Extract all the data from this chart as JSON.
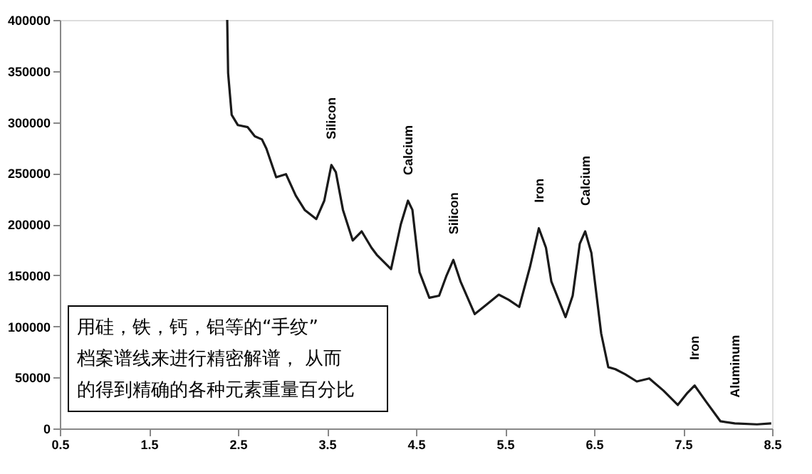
{
  "chart_data": {
    "type": "line",
    "x": [
      2.38,
      2.39,
      2.43,
      2.5,
      2.61,
      2.69,
      2.77,
      2.82,
      2.93,
      3.04,
      3.15,
      3.25,
      3.38,
      3.47,
      3.55,
      3.6,
      3.68,
      3.79,
      3.89,
      4.0,
      4.06,
      4.22,
      4.33,
      4.41,
      4.46,
      4.54,
      4.65,
      4.76,
      4.84,
      4.92,
      5.0,
      5.16,
      5.29,
      5.43,
      5.54,
      5.66,
      5.78,
      5.88,
      5.96,
      6.02,
      6.18,
      6.26,
      6.34,
      6.4,
      6.47,
      6.58,
      6.66,
      6.74,
      6.85,
      6.98,
      7.12,
      7.28,
      7.44,
      7.55,
      7.63,
      7.76,
      7.92,
      8.08,
      8.33,
      8.49
    ],
    "series": [
      {
        "color": "#1a1a1a",
        "values": [
          400000,
          348000,
          307000,
          297000,
          295000,
          286000,
          283000,
          274000,
          246000,
          249000,
          228000,
          214000,
          205000,
          223000,
          258000,
          251000,
          214000,
          184000,
          193000,
          177000,
          170000,
          156000,
          200000,
          223000,
          214000,
          153000,
          128000,
          130000,
          149000,
          165000,
          144000,
          112000,
          121000,
          131000,
          126000,
          119000,
          158000,
          196000,
          177000,
          144000,
          109000,
          130000,
          181000,
          193000,
          172000,
          93000,
          60000,
          58000,
          53000,
          46000,
          49000,
          37000,
          23000,
          35000,
          42000,
          26000,
          7000,
          5000,
          4000,
          5000
        ]
      }
    ],
    "xlim": [
      0.5,
      8.5
    ],
    "ylim": [
      0,
      400000
    ],
    "xticks": [
      0.5,
      1.5,
      2.5,
      3.5,
      4.5,
      5.5,
      6.5,
      7.5,
      8.5
    ],
    "yticks": [
      0,
      50000,
      100000,
      150000,
      200000,
      250000,
      300000,
      350000,
      400000
    ],
    "grid": false,
    "marker": "none",
    "line_style": "solid",
    "annotations": [
      {
        "text": "Silicon",
        "x": 3.55,
        "y": 258000
      },
      {
        "text": "Calcium",
        "x": 4.41,
        "y": 223000
      },
      {
        "text": "Silicon",
        "x": 4.92,
        "y": 165000
      },
      {
        "text": "Iron",
        "x": 5.88,
        "y": 196000
      },
      {
        "text": "Calcium",
        "x": 6.4,
        "y": 193000
      },
      {
        "text": "Iron",
        "x": 7.63,
        "y": 42000
      },
      {
        "text": "Aluminum",
        "x": 8.08,
        "y": 5000
      },
      "用硅，铁，钙，铝等的“手纹” 档案谱线来进行精密解谱， 从而的得到精确的各种元素重量百分比"
    ]
  }
}
